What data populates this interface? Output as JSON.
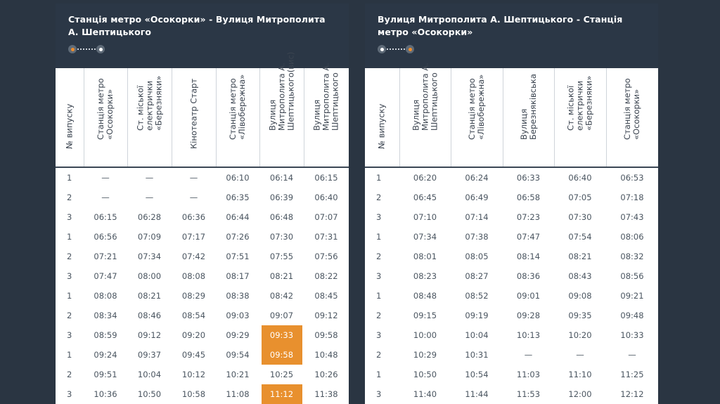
{
  "colors": {
    "background": "#2a3542",
    "header": "#2b3746",
    "highlight": "#e8902e"
  },
  "left": {
    "title": "Станція метро «Осокорки» - Вулиця Митрополита А. Шептицького",
    "columns": [
      "№ випуску",
      "Станція метро «Осокорки»",
      "Ст. міської електрички «Березняки»",
      "Кінотеатр Старт",
      "Станція метро «Лівобережна»",
      "Вулиця Митрополита А. Шептицького(вис)",
      "Вулиця Митрополита А. Шептицького"
    ],
    "rows": [
      [
        "1",
        "—",
        "—",
        "—",
        "06:10",
        "06:14",
        "06:15"
      ],
      [
        "2",
        "—",
        "—",
        "—",
        "06:35",
        "06:39",
        "06:40"
      ],
      [
        "3",
        "06:15",
        "06:28",
        "06:36",
        "06:44",
        "06:48",
        "07:07"
      ],
      [
        "1",
        "06:56",
        "07:09",
        "07:17",
        "07:26",
        "07:30",
        "07:31"
      ],
      [
        "2",
        "07:21",
        "07:34",
        "07:42",
        "07:51",
        "07:55",
        "07:56"
      ],
      [
        "3",
        "07:47",
        "08:00",
        "08:08",
        "08:17",
        "08:21",
        "08:22"
      ],
      [
        "1",
        "08:08",
        "08:21",
        "08:29",
        "08:38",
        "08:42",
        "08:45"
      ],
      [
        "2",
        "08:34",
        "08:46",
        "08:54",
        "09:03",
        "09:07",
        "09:12"
      ],
      [
        "3",
        "08:59",
        "09:12",
        "09:20",
        "09:29",
        "09:33",
        "09:58"
      ],
      [
        "1",
        "09:24",
        "09:37",
        "09:45",
        "09:54",
        "09:58",
        "10:48"
      ],
      [
        "2",
        "09:51",
        "10:04",
        "10:12",
        "10:21",
        "10:25",
        "10:26"
      ],
      [
        "3",
        "10:36",
        "10:50",
        "10:58",
        "11:08",
        "11:12",
        "11:38"
      ]
    ],
    "highlighted": [
      [
        8,
        5
      ],
      [
        9,
        5
      ],
      [
        11,
        5
      ]
    ]
  },
  "right": {
    "title": "Вулиця Митрополита А. Шептицького - Станція метро «Осокорки»",
    "columns": [
      "№ випуску",
      "Вулиця Митрополита А. Шептицького",
      "Станція метро «Лівобережна»",
      "Вулиця Березняківська",
      "Ст. міської електрички «Березняки»",
      "Станція метро «Осокорки»"
    ],
    "rows": [
      [
        "1",
        "06:20",
        "06:24",
        "06:33",
        "06:40",
        "06:53"
      ],
      [
        "2",
        "06:45",
        "06:49",
        "06:58",
        "07:05",
        "07:18"
      ],
      [
        "3",
        "07:10",
        "07:14",
        "07:23",
        "07:30",
        "07:43"
      ],
      [
        "1",
        "07:34",
        "07:38",
        "07:47",
        "07:54",
        "08:06"
      ],
      [
        "2",
        "08:01",
        "08:05",
        "08:14",
        "08:21",
        "08:32"
      ],
      [
        "3",
        "08:23",
        "08:27",
        "08:36",
        "08:43",
        "08:56"
      ],
      [
        "1",
        "08:48",
        "08:52",
        "09:01",
        "09:08",
        "09:21"
      ],
      [
        "2",
        "09:15",
        "09:19",
        "09:28",
        "09:35",
        "09:48"
      ],
      [
        "3",
        "10:00",
        "10:04",
        "10:13",
        "10:20",
        "10:33"
      ],
      [
        "2",
        "10:29",
        "10:31",
        "—",
        "—",
        "—"
      ],
      [
        "1",
        "10:50",
        "10:54",
        "11:03",
        "11:10",
        "11:25"
      ],
      [
        "3",
        "11:40",
        "11:44",
        "11:53",
        "12:00",
        "12:12"
      ]
    ],
    "highlighted": []
  }
}
